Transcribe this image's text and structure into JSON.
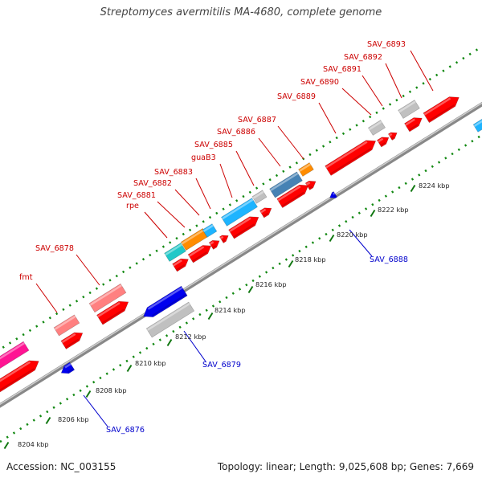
{
  "title": "Streptomyces avermitilis MA-4680, complete genome",
  "accession": "Accession: NC_003155",
  "summary": "Topology: linear; Length: 9,025,608 bp; Genes: 7,669",
  "ruler": {
    "ticks": [
      "8204 kbp",
      "8206 kbp",
      "8208 kbp",
      "8210 kbp",
      "8212 kbp",
      "8214 kbp",
      "8216 kbp",
      "8218 kbp",
      "8220 kbp",
      "8222 kbp",
      "8224 kbp"
    ]
  },
  "colors": {
    "red": "#ff0000",
    "pink": "#ff8080",
    "magenta": "#ff1493",
    "blue": "#0000ee",
    "gray": "#c0c0c0",
    "orange": "#ff8c00",
    "cyan": "#20c8c8",
    "skyblue": "#1eb4ff",
    "steelblue": "#4682b4",
    "label_forward": "#cc0000",
    "label_reverse": "#0000cc",
    "dots": "#118811",
    "axis": "#999999"
  },
  "labels_forward": [
    "SAV_6893",
    "SAV_6892",
    "SAV_6891",
    "SAV_6890",
    "SAV_6889",
    "SAV_6887",
    "SAV_6886",
    "SAV_6885",
    "guaB3",
    "SAV_6883",
    "SAV_6882",
    "SAV_6881",
    "rpe",
    "SAV_6878",
    "fmt"
  ],
  "labels_reverse": [
    "SAV_6888",
    "SAV_6879",
    "SAV_6876"
  ]
}
